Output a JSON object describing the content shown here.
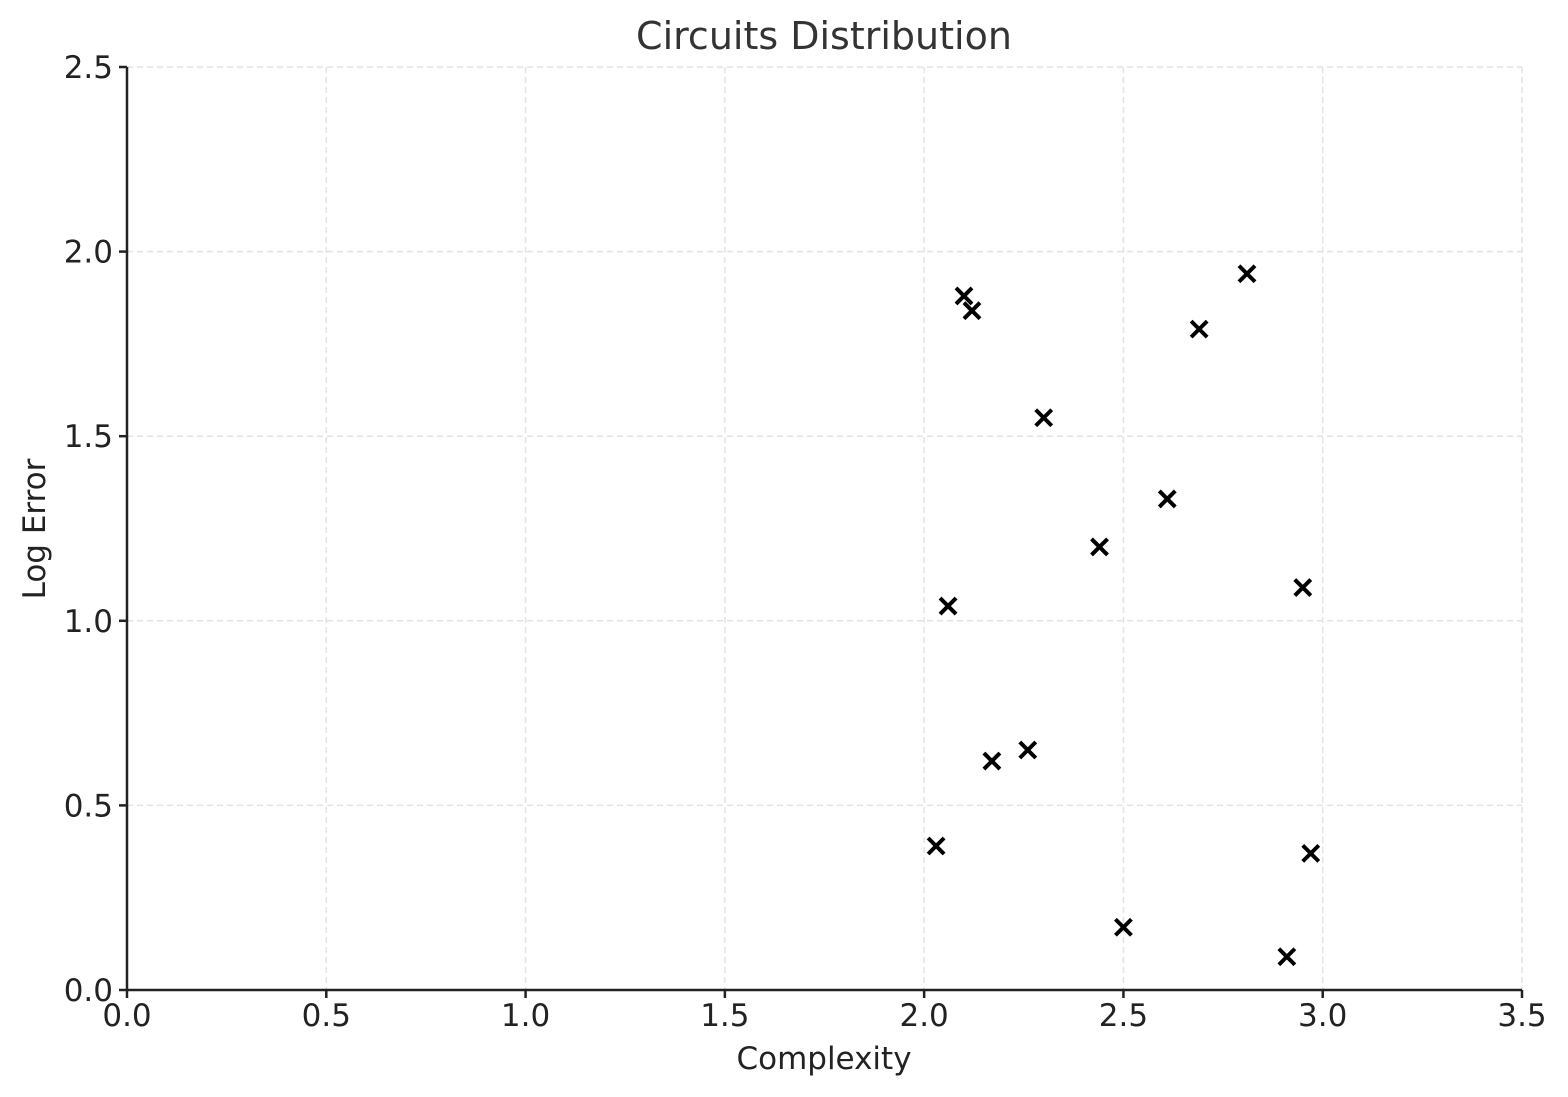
{
  "chart_data": {
    "type": "scatter",
    "title": "Circuits Distribution",
    "xlabel": "Complexity",
    "ylabel": "Log Error",
    "xlim": [
      0.0,
      3.5
    ],
    "ylim": [
      0.0,
      2.5
    ],
    "xticks": [
      "0.0",
      "0.5",
      "1.0",
      "1.5",
      "2.0",
      "2.5",
      "3.0",
      "3.5"
    ],
    "yticks": [
      "0.0",
      "0.5",
      "1.0",
      "1.5",
      "2.0",
      "2.5"
    ],
    "grid": true,
    "marker": "x",
    "marker_color": "#000000",
    "points": [
      {
        "x": 2.1,
        "y": 1.88
      },
      {
        "x": 2.12,
        "y": 1.84
      },
      {
        "x": 2.81,
        "y": 1.94
      },
      {
        "x": 2.69,
        "y": 1.79
      },
      {
        "x": 2.3,
        "y": 1.55
      },
      {
        "x": 2.61,
        "y": 1.33
      },
      {
        "x": 2.44,
        "y": 1.2
      },
      {
        "x": 2.95,
        "y": 1.09
      },
      {
        "x": 2.06,
        "y": 1.04
      },
      {
        "x": 2.26,
        "y": 0.65
      },
      {
        "x": 2.17,
        "y": 0.62
      },
      {
        "x": 2.03,
        "y": 0.39
      },
      {
        "x": 2.97,
        "y": 0.37
      },
      {
        "x": 2.5,
        "y": 0.17
      },
      {
        "x": 2.91,
        "y": 0.09
      }
    ]
  }
}
